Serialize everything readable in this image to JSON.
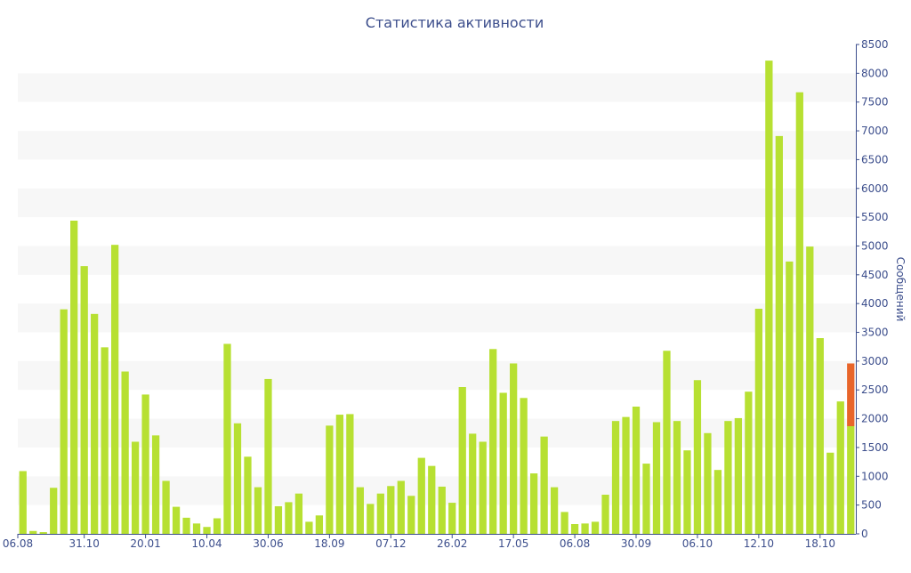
{
  "chart_data": {
    "type": "bar",
    "title": "Статистика активности",
    "ylabel": "Сообщений",
    "ylim": [
      0,
      8500
    ],
    "yticks": [
      0,
      500,
      1000,
      1500,
      2000,
      2500,
      3000,
      3500,
      4000,
      4500,
      5000,
      5500,
      6000,
      6500,
      7000,
      7500,
      8000,
      8500
    ],
    "x_tick_labels": [
      {
        "label": "06.08",
        "index": 0
      },
      {
        "label": "31.10",
        "index": 6
      },
      {
        "label": "20.01",
        "index": 12
      },
      {
        "label": "10.04",
        "index": 18
      },
      {
        "label": "30.06",
        "index": 24
      },
      {
        "label": "18.09",
        "index": 30
      },
      {
        "label": "07.12",
        "index": 36
      },
      {
        "label": "26.02",
        "index": 42
      },
      {
        "label": "17.05",
        "index": 48
      },
      {
        "label": "06.08",
        "index": 54
      },
      {
        "label": "30.09",
        "index": 60
      },
      {
        "label": "06.10",
        "index": 66
      },
      {
        "label": "12.10",
        "index": 72
      },
      {
        "label": "18.10",
        "index": 78
      }
    ],
    "series": [
      {
        "color": "#b7e032",
        "values": [
          1090,
          50,
          30,
          800,
          3900,
          5440,
          4650,
          3820,
          3240,
          5020,
          2820,
          1600,
          2420,
          1710,
          920,
          470,
          280,
          180,
          120,
          270,
          3300,
          1920,
          1340,
          810,
          2690,
          480,
          550,
          700,
          210,
          320,
          1880,
          2070,
          2080,
          810,
          520,
          700,
          830,
          920,
          660,
          1320,
          1180,
          820,
          540,
          2550,
          1740,
          1600,
          3210,
          2450,
          2960,
          2360,
          1050,
          1690,
          810,
          380,
          170,
          180,
          210,
          680,
          1960,
          2030,
          2210,
          1220,
          1940,
          3180,
          1960,
          1450,
          2670,
          1750,
          1110,
          1960,
          2010,
          2470,
          3910,
          8220,
          6910,
          4730,
          7670,
          4990,
          3400,
          1410,
          2300,
          1870
        ]
      },
      {
        "color": "#e8652a",
        "values": [
          0,
          0,
          0,
          0,
          0,
          0,
          0,
          0,
          0,
          0,
          0,
          0,
          0,
          0,
          0,
          0,
          0,
          0,
          0,
          0,
          0,
          0,
          0,
          0,
          0,
          0,
          0,
          0,
          0,
          0,
          0,
          0,
          0,
          0,
          0,
          0,
          0,
          0,
          0,
          0,
          0,
          0,
          0,
          0,
          0,
          0,
          0,
          0,
          0,
          0,
          0,
          0,
          0,
          0,
          0,
          0,
          0,
          0,
          0,
          0,
          0,
          0,
          0,
          0,
          0,
          0,
          0,
          0,
          0,
          0,
          0,
          0,
          0,
          0,
          0,
          0,
          0,
          0,
          0,
          0,
          0,
          1090
        ]
      }
    ],
    "stacked": true,
    "grid": "alternating horizontal bands",
    "y_axis_position": "right",
    "colors": {
      "title": "#3c4e8c",
      "axis_text": "#3c4e8c",
      "band": "#f7f7f7"
    }
  }
}
